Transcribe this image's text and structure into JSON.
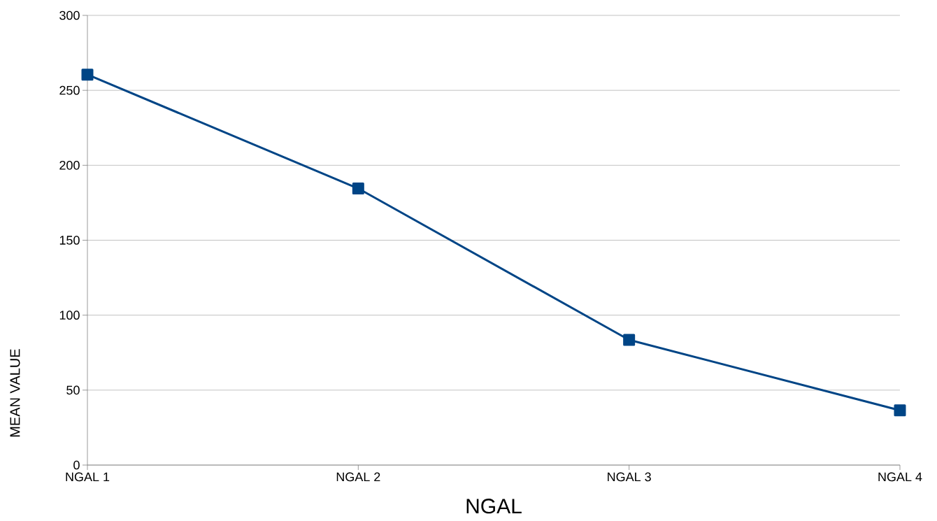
{
  "chart_data": {
    "type": "line",
    "xlabel": "NGAL",
    "ylabel": "MEAN VALUE",
    "categories": [
      "NGAL 1",
      "NGAL 2",
      "NGAL 3",
      "NGAL 4"
    ],
    "series": [
      {
        "color": "#004586",
        "values": [
          260.5,
          184.5,
          83.5,
          36.5
        ]
      }
    ],
    "ylim": [
      0,
      300
    ],
    "yticks": [
      0,
      50,
      100,
      150,
      200,
      250,
      300
    ],
    "grid": "y",
    "marker": "square",
    "line_style": "solid"
  }
}
